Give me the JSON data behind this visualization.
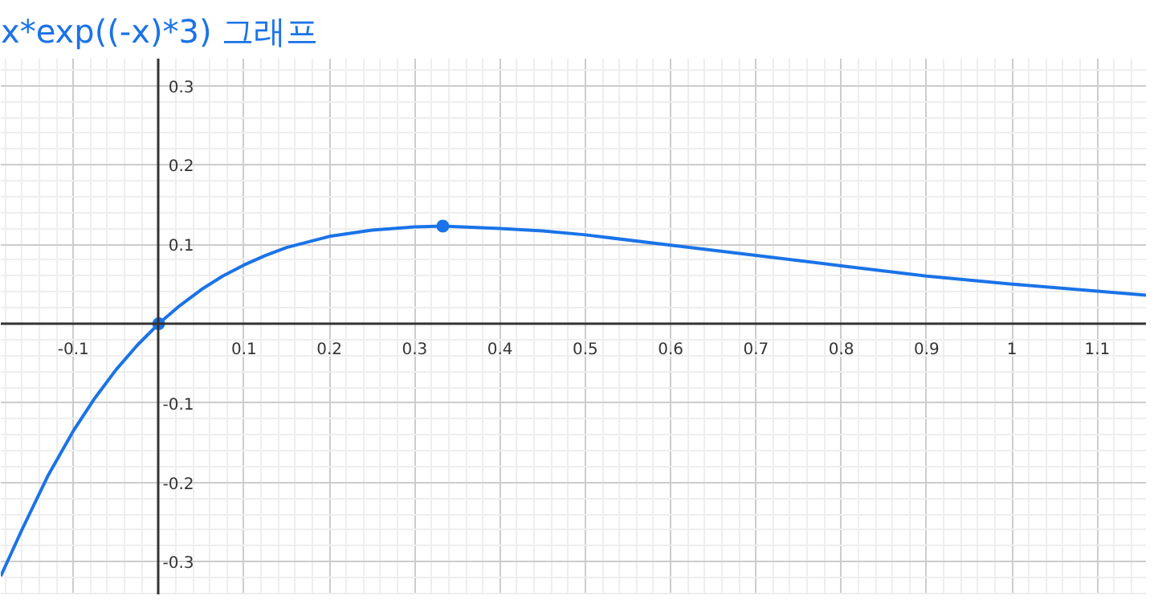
{
  "chart_data": {
    "type": "line",
    "title": "x*exp((-x)*3) 그래프",
    "xlim": [
      -0.185,
      1.157
    ],
    "ylim": [
      -0.342,
      0.334
    ],
    "xticks": [
      -0.1,
      {
        "value": 0,
        "label": null
      },
      0.1,
      0.2,
      0.3,
      0.4,
      0.5,
      0.6,
      0.7,
      0.8,
      0.9,
      1,
      1.1
    ],
    "yticks": [
      -0.3,
      -0.2,
      -0.1,
      {
        "value": 0,
        "label": null
      },
      0.1,
      0.2,
      0.3
    ],
    "grid": true,
    "series": [
      {
        "color": "#1a73e8",
        "x": [
          -0.185,
          -0.16,
          -0.13,
          -0.1,
          -0.075,
          -0.05,
          -0.025,
          0,
          0.025,
          0.05,
          0.075,
          0.1,
          0.125,
          0.15,
          0.2,
          0.25,
          0.3,
          0.333,
          0.4,
          0.45,
          0.5,
          0.6,
          0.7,
          0.8,
          0.9,
          1.0,
          1.1,
          1.157
        ],
        "values": [
          -0.318,
          -0.259,
          -0.192,
          -0.135,
          -0.094,
          -0.058,
          -0.027,
          0,
          0.023,
          0.043,
          0.06,
          0.074,
          0.086,
          0.096,
          0.11,
          0.118,
          0.122,
          0.123,
          0.12,
          0.117,
          0.112,
          0.099,
          0.086,
          0.073,
          0.06,
          0.05,
          0.041,
          0.036
        ],
        "line_style": "solid",
        "marker": "none"
      },
      {
        "type": "scatter",
        "color": "#1a73e8",
        "x": [
          0,
          0.333
        ],
        "values": [
          0,
          0.123
        ],
        "marker": "circle"
      }
    ]
  }
}
